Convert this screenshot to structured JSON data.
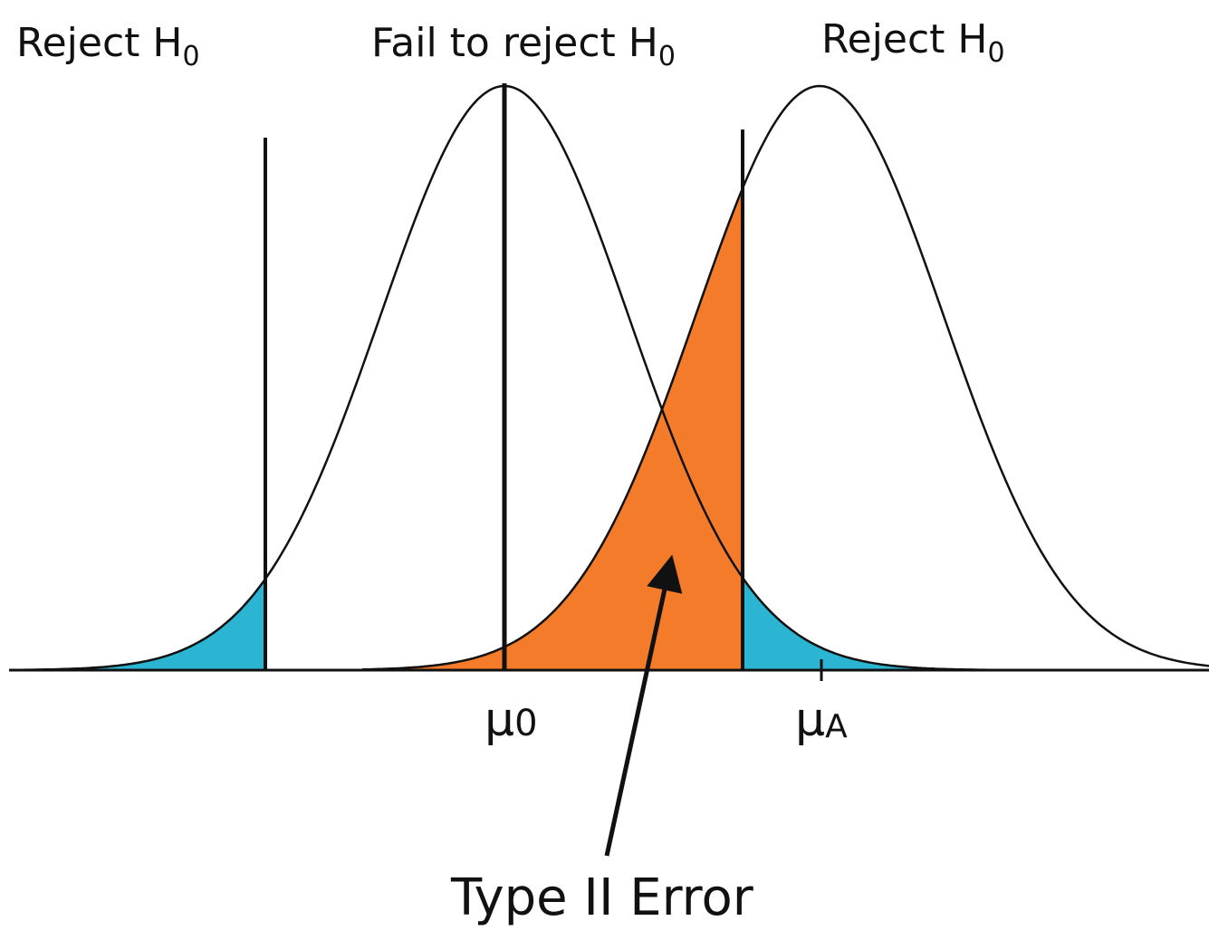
{
  "labels": {
    "left_region": {
      "text": "Reject H",
      "subscript": "0"
    },
    "middle_region": {
      "text": "Fail to reject H",
      "subscript": "0"
    },
    "right_region": {
      "text": "Reject H",
      "subscript": "0"
    },
    "null_mean": {
      "text": "μ",
      "subscript": "0"
    },
    "alt_mean": {
      "text": "μ",
      "subscript": "A"
    },
    "error_label": "Type II Error"
  }
}
